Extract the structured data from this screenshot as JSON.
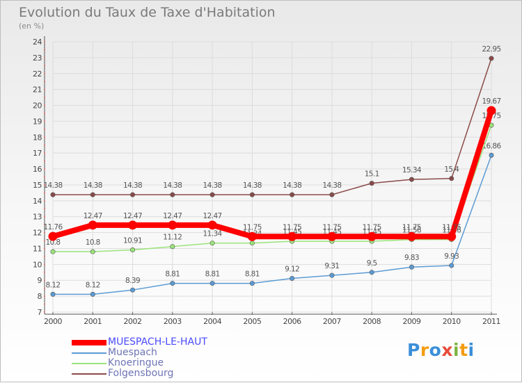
{
  "header": {
    "title": "Evolution du Taux de Taxe d'Habitation",
    "subtitle": "(en %)"
  },
  "chart_data": {
    "type": "line",
    "title": "Evolution du Taux de Taxe d'Habitation",
    "ylabel": "(en %)",
    "xlabel": "",
    "x": [
      "2000",
      "2001",
      "2002",
      "2003",
      "2004",
      "2005",
      "2006",
      "2007",
      "2008",
      "2009",
      "2010",
      "2011"
    ],
    "ylim": [
      7,
      24
    ],
    "yticks": [
      "7",
      "8",
      "9",
      "10",
      "11",
      "12",
      "13",
      "14",
      "15",
      "16",
      "17",
      "18",
      "19",
      "20",
      "21",
      "22",
      "23",
      "24"
    ],
    "grid": true,
    "legend": "bottom-left",
    "series": [
      {
        "name": "MUESPACH-LE-HAUT",
        "color": "#ff0000",
        "emphasis": true,
        "values": [
          11.76,
          12.47,
          12.47,
          12.47,
          12.47,
          11.75,
          11.75,
          11.75,
          11.75,
          11.75,
          11.75,
          19.67
        ],
        "labels": [
          "11.76",
          "12.47",
          "12.47",
          "12.47",
          "12.47",
          "11.75",
          "11.75",
          "11.75",
          "11.75",
          "11.75",
          "11.75",
          "19.67"
        ]
      },
      {
        "name": "Muespach",
        "color": "#5b9bd5",
        "values": [
          8.12,
          8.12,
          8.39,
          8.81,
          8.81,
          8.81,
          9.12,
          9.31,
          9.5,
          9.83,
          9.93,
          16.86
        ],
        "labels": [
          "8.12",
          "8.12",
          "8.39",
          "8.81",
          "8.81",
          "8.81",
          "9.12",
          "9.31",
          "9.5",
          "9.83",
          "9.93",
          "16.86"
        ]
      },
      {
        "name": "Knoeringue",
        "color": "#9be37a",
        "values": [
          10.8,
          10.8,
          10.91,
          11.12,
          11.34,
          11.34,
          11.45,
          11.45,
          11.45,
          11.56,
          11.56,
          18.75
        ],
        "labels": [
          "10.8",
          "10.8",
          "10.91",
          "11.12",
          "11.34",
          "11.34",
          "11.45",
          "11.45",
          "11.45",
          "11.56",
          "11.56",
          "18.75"
        ]
      },
      {
        "name": "Folgensbourg",
        "color": "#8b4a4a",
        "values": [
          14.38,
          14.38,
          14.38,
          14.38,
          14.38,
          14.38,
          14.38,
          14.38,
          15.1,
          15.34,
          15.4,
          22.95
        ],
        "labels": [
          "14.38",
          "14.38",
          "14.38",
          "14.38",
          "14.38",
          "14.38",
          "14.38",
          "14.38",
          "15.1",
          "15.34",
          "15.4",
          "22.95"
        ]
      }
    ]
  },
  "brand": {
    "letters": [
      "P",
      "r",
      "o",
      "x",
      "i",
      "t",
      "i"
    ],
    "colors": [
      "#3a8fd9",
      "#f39c12",
      "#3a8fd9",
      "#e74c3c",
      "#7cb342",
      "#f39c12",
      "#3a8fd9"
    ]
  }
}
